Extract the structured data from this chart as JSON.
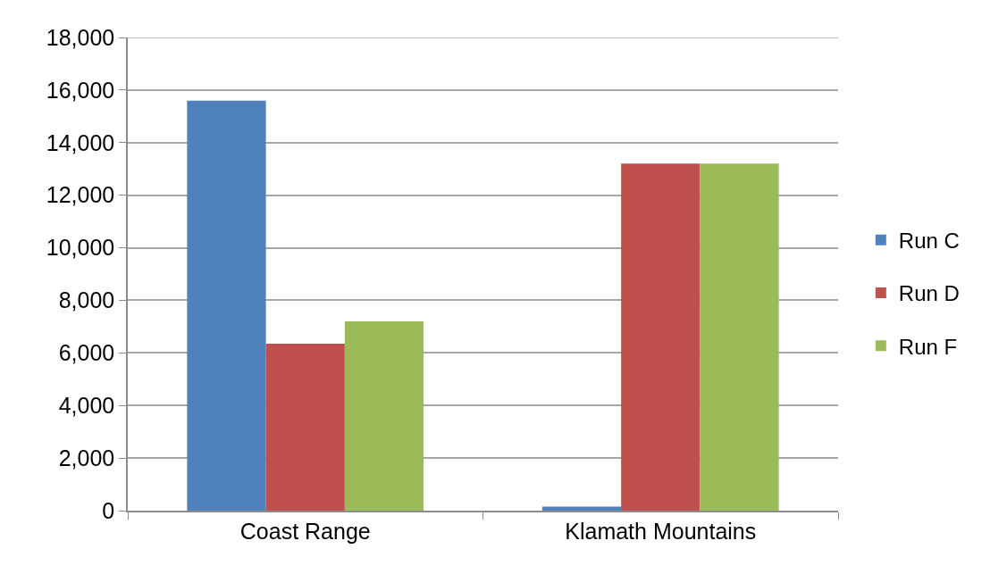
{
  "chart_data": {
    "type": "bar",
    "categories": [
      "Coast Range",
      "Klamath Mountains"
    ],
    "series": [
      {
        "name": "Run C",
        "color": "#4f81bd",
        "values": [
          15600,
          150
        ]
      },
      {
        "name": "Run D",
        "color": "#c0504d",
        "values": [
          6350,
          13200
        ]
      },
      {
        "name": "Run F",
        "color": "#9bbb59",
        "values": [
          7200,
          13200
        ]
      }
    ],
    "ylim": [
      0,
      18000
    ],
    "yticks": [
      0,
      {
        "value": 2000,
        "label": "2,000"
      },
      {
        "value": 4000,
        "label": "4,000"
      },
      {
        "value": 6000,
        "label": "6,000"
      },
      {
        "value": 8000,
        "label": "8,000"
      },
      {
        "value": 10000,
        "label": "10,000"
      },
      {
        "value": 12000,
        "label": "12,000"
      },
      {
        "value": 14000,
        "label": "14,000"
      },
      {
        "value": 16000,
        "label": "16,000"
      },
      {
        "value": 18000,
        "label": "18,000"
      }
    ],
    "grid": "y",
    "legend": "right"
  }
}
